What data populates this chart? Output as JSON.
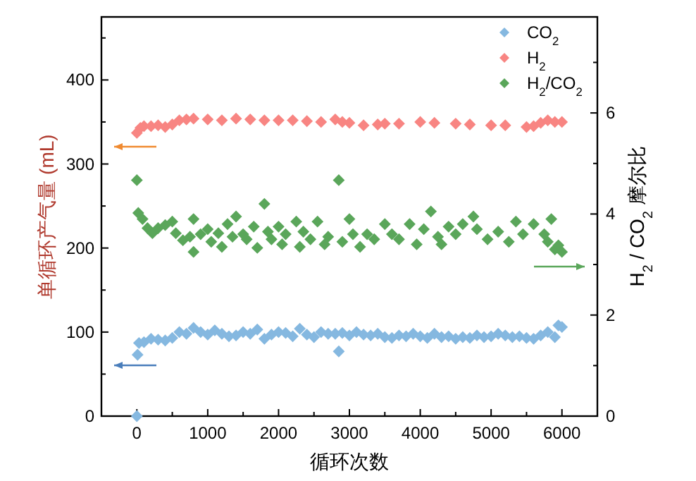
{
  "chart_data": {
    "type": "scatter",
    "marker": "diamond",
    "legend": "top right",
    "grid": false,
    "xlabel": "循环次数",
    "ylabel": "单循环产气量 (mL)",
    "y2label": "H$_{2}$ / CO$_{2}$ 摩尔比",
    "xlim": [
      -500,
      6500
    ],
    "xticks": [
      0,
      1000,
      2000,
      3000,
      4000,
      5000,
      6000,
      {
        "value": 500,
        "label": null
      },
      {
        "value": 1500,
        "label": null
      },
      {
        "value": 2500,
        "label": null
      },
      {
        "value": 3500,
        "label": null
      },
      {
        "value": 4500,
        "label": null
      },
      {
        "value": 5500,
        "label": null
      }
    ],
    "ylim": [
      0,
      475
    ],
    "yticks": [
      0,
      100,
      200,
      300,
      400,
      {
        "value": 50,
        "label": null
      },
      {
        "value": 150,
        "label": null
      },
      {
        "value": 250,
        "label": null
      },
      {
        "value": 350,
        "label": null
      },
      {
        "value": 450,
        "label": null
      }
    ],
    "y2lim": [
      0,
      7.9
    ],
    "y2ticks": [
      0,
      2,
      4,
      6,
      {
        "value": 1,
        "label": null
      },
      {
        "value": 3,
        "label": null
      },
      {
        "value": 5,
        "label": null
      },
      {
        "value": 7,
        "label": null
      }
    ],
    "series": [
      {
        "name": "CO$_{2}$",
        "color": "#85b8e0",
        "x": [
          0,
          10,
          30,
          100,
          200,
          300,
          400,
          500,
          600,
          700,
          800,
          900,
          1000,
          1100,
          1200,
          1300,
          1400,
          1500,
          1600,
          1700,
          1800,
          1900,
          2000,
          2100,
          2200,
          2300,
          2400,
          2500,
          2600,
          2700,
          2800,
          2850,
          2900,
          3000,
          3100,
          3200,
          3300,
          3400,
          3500,
          3600,
          3700,
          3800,
          3900,
          4000,
          4100,
          4200,
          4300,
          4400,
          4500,
          4600,
          4700,
          4800,
          4900,
          5000,
          5100,
          5200,
          5300,
          5400,
          5500,
          5600,
          5700,
          5800,
          5900,
          5950,
          6000
        ],
        "values": [
          0,
          73,
          87,
          88,
          92,
          91,
          90,
          93,
          100,
          98,
          105,
          100,
          97,
          102,
          98,
          95,
          96,
          100,
          98,
          103,
          92,
          97,
          100,
          99,
          95,
          104,
          97,
          94,
          100,
          98,
          98,
          77,
          99,
          96,
          100,
          97,
          96,
          98,
          94,
          93,
          96,
          95,
          98,
          95,
          93,
          98,
          94,
          95,
          92,
          94,
          93,
          96,
          94,
          95,
          98,
          96,
          94,
          95,
          93,
          92,
          96,
          100,
          94,
          108,
          106
        ]
      },
      {
        "name": "H$_{2}$",
        "color": "#f88582",
        "x": [
          0,
          50,
          100,
          200,
          300,
          400,
          500,
          600,
          700,
          800,
          1000,
          1200,
          1400,
          1600,
          1800,
          2000,
          2200,
          2400,
          2600,
          2800,
          2900,
          3000,
          3200,
          3400,
          3500,
          3700,
          4000,
          4200,
          4500,
          4700,
          5000,
          5200,
          5500,
          5600,
          5700,
          5800,
          5900,
          6000
        ],
        "values": [
          337,
          343,
          345,
          345,
          346,
          344,
          347,
          352,
          353,
          354,
          353,
          352,
          354,
          353,
          352,
          352,
          352,
          351,
          350,
          353,
          350,
          349,
          346,
          347,
          348,
          348,
          350,
          349,
          348,
          347,
          346,
          346,
          344,
          345,
          349,
          352,
          350,
          350
        ]
      },
      {
        "name": "H$_{2}$/CO$_{2}$",
        "color": "#5aa65a",
        "axis": "y2",
        "x": [
          0,
          20,
          80,
          150,
          220,
          300,
          400,
          500,
          550,
          650,
          750,
          800,
          800,
          900,
          1000,
          1050,
          1150,
          1200,
          1280,
          1350,
          1400,
          1500,
          1550,
          1650,
          1700,
          1800,
          1850,
          1900,
          2000,
          2050,
          2100,
          2250,
          2300,
          2350,
          2450,
          2550,
          2650,
          2700,
          2850,
          2900,
          3000,
          3050,
          3150,
          3250,
          3350,
          3500,
          3600,
          3700,
          3850,
          3950,
          4050,
          4150,
          4250,
          4300,
          4400,
          4500,
          4600,
          4750,
          4800,
          4950,
          5100,
          5250,
          5350,
          5450,
          5600,
          5750,
          5800,
          5850,
          5900,
          5950,
          6000
        ],
        "values": [
          4.67,
          4.02,
          3.9,
          3.72,
          3.62,
          3.72,
          3.78,
          3.85,
          3.62,
          3.48,
          3.55,
          3.25,
          3.9,
          3.6,
          3.7,
          3.45,
          3.62,
          3.35,
          3.8,
          3.55,
          3.95,
          3.6,
          3.5,
          3.75,
          3.33,
          4.2,
          3.65,
          3.5,
          3.75,
          3.4,
          3.6,
          3.85,
          3.35,
          3.65,
          3.5,
          3.85,
          3.4,
          3.55,
          4.67,
          3.45,
          3.9,
          3.6,
          3.35,
          3.6,
          3.5,
          3.8,
          3.6,
          3.5,
          3.8,
          3.4,
          3.7,
          4.05,
          3.55,
          3.4,
          3.75,
          3.6,
          3.8,
          3.95,
          3.7,
          3.5,
          3.65,
          3.45,
          3.85,
          3.6,
          3.8,
          3.6,
          3.45,
          3.9,
          3.3,
          3.38,
          3.25
        ]
      }
    ]
  }
}
